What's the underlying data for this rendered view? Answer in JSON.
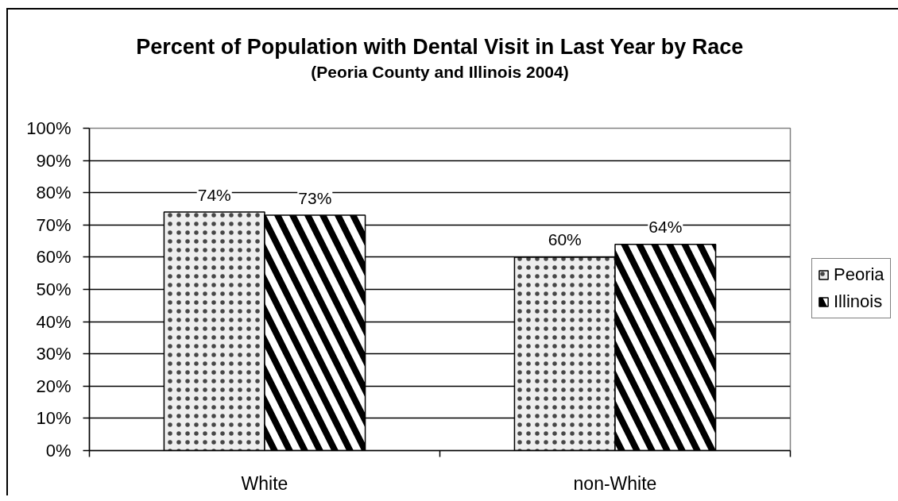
{
  "chart_data": {
    "type": "bar",
    "title": "Percent of Population with Dental Visit in Last Year by Race",
    "subtitle": "(Peoria County and Illinois 2004)",
    "categories": [
      "White",
      "non-White"
    ],
    "series": [
      {
        "name": "Peoria",
        "color": "#eeeeee",
        "values": [
          74,
          60
        ],
        "value_labels": [
          "74%",
          "60%"
        ]
      },
      {
        "name": "Illinois",
        "color": "#000000",
        "values": [
          73,
          64
        ],
        "value_labels": [
          "73%",
          "64%"
        ]
      }
    ],
    "ylim": [
      0,
      100
    ],
    "yticks": [
      {
        "value": 0,
        "label": "0%"
      },
      {
        "value": 10,
        "label": "10%"
      },
      {
        "value": 20,
        "label": "20%"
      },
      {
        "value": 30,
        "label": "30%"
      },
      {
        "value": 40,
        "label": "40%"
      },
      {
        "value": 50,
        "label": "50%"
      },
      {
        "value": 60,
        "label": "60%"
      },
      {
        "value": 70,
        "label": "70%"
      },
      {
        "value": 80,
        "label": "80%"
      },
      {
        "value": 90,
        "label": "90%"
      },
      {
        "value": 100,
        "label": "100%"
      }
    ],
    "grid": "y",
    "legend": "right"
  }
}
